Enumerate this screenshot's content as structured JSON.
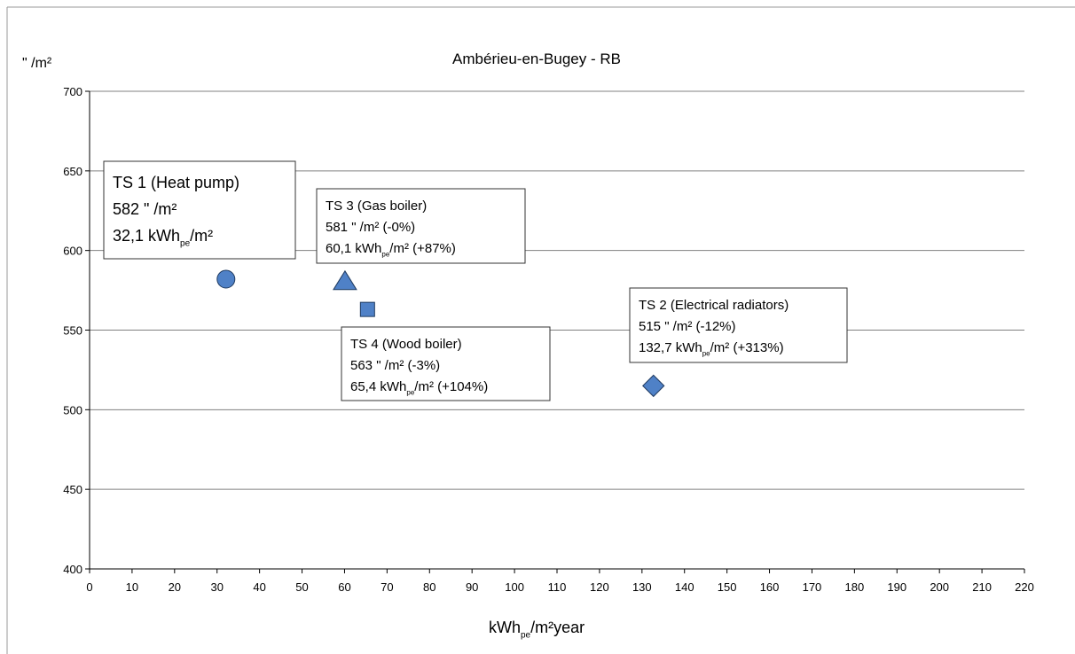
{
  "chart_data": {
    "type": "scatter",
    "title": "Ambérieu-en-Bugey - RB",
    "ylabel": "\" /m²",
    "xlabel": [
      "kWh",
      "pe",
      "/m²year"
    ],
    "xlim": [
      0,
      220
    ],
    "xticks": [
      0,
      10,
      20,
      30,
      40,
      50,
      60,
      70,
      80,
      90,
      100,
      110,
      120,
      130,
      140,
      150,
      160,
      170,
      180,
      190,
      200,
      210,
      220
    ],
    "ylim": [
      400,
      700
    ],
    "yticks": [
      400,
      450,
      500,
      550,
      600,
      650,
      700
    ],
    "grid": true,
    "series": [
      {
        "name": "TS 1 (Heat pump)",
        "marker": "circle",
        "color": "#4f81c7",
        "x": [
          32.1
        ],
        "values": [
          582
        ],
        "value_labels": [
          [
            "582 \" /m²"
          ],
          [
            "32,1 kWh",
            "pe",
            "/m²"
          ]
        ]
      },
      {
        "name": "TS 3 (Gas boiler)",
        "marker": "triangle",
        "color": "#4f81c7",
        "x": [
          60.1
        ],
        "values": [
          581
        ],
        "value_labels": [
          [
            "581 \" /m² (-0%)"
          ],
          [
            "60,1 kWh",
            "pe",
            "/m² (+87%)"
          ]
        ]
      },
      {
        "name": "TS 4 (Wood boiler)",
        "marker": "square",
        "color": "#4f81c7",
        "x": [
          65.4
        ],
        "values": [
          563
        ],
        "value_labels": [
          [
            "563 \" /m² (-3%)"
          ],
          [
            "65,4 kWh",
            "pe",
            "/m² (+104%)"
          ]
        ]
      },
      {
        "name": "TS 2 (Electrical radiators)",
        "marker": "diamond",
        "color": "#4f81c7",
        "x": [
          132.7
        ],
        "values": [
          515
        ],
        "value_labels": [
          [
            "515 \" /m² (-12%)"
          ],
          [
            "132,7 kWh",
            "pe",
            "/m² (+313%)"
          ]
        ]
      }
    ]
  }
}
